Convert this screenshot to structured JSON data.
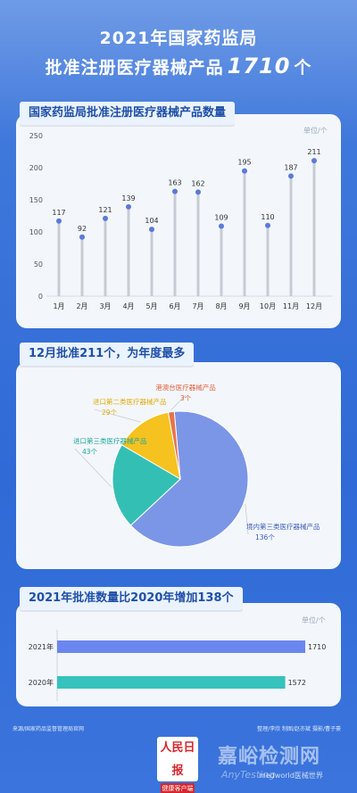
{
  "title": {
    "line1": "2021年国家药监局",
    "line2_prefix": "批准注册医疗器械产品",
    "line2_number": "1710",
    "line2_suffix": "个"
  },
  "section1_label": "国家药监局批准注册医疗器械产品数量",
  "section2_label": "12月批准211个，为年度最多",
  "section3_label": "2021年批准数量比2020年增加138个",
  "unit_label": "单位/个",
  "source": "来源/国家药品监督管理局官网",
  "credits": "整理/李欣  制图/赵亦斌  摄影/曹子豪",
  "logo": {
    "line1": "人民日报",
    "line2": "健康客户端"
  },
  "watermark": {
    "main": "嘉峪检测网",
    "sub": "AnyTesting",
    "account": "medworld医械世界"
  },
  "colors": {
    "accent_blue": "#5b79dc",
    "stem_gray": "#c7ccd4",
    "pie_domestic3": "#7b96e6",
    "pie_import3": "#34bfb5",
    "pie_import2": "#f5c21f",
    "pie_hkmt": "#e8734a",
    "bar_2021": "#6b86ef",
    "bar_2020": "#36c2bd"
  },
  "chart_data": [
    {
      "type": "bar",
      "subtype": "lollipop",
      "categories": [
        "1月",
        "2月",
        "3月",
        "4月",
        "5月",
        "6月",
        "7月",
        "8月",
        "9月",
        "10月",
        "11月",
        "12月"
      ],
      "values": [
        117,
        92,
        121,
        139,
        104,
        163,
        162,
        109,
        195,
        110,
        187,
        211
      ],
      "ylim": [
        0,
        250
      ],
      "yticks": [
        0,
        50,
        100,
        150,
        200,
        250
      ],
      "grid": false
    },
    {
      "type": "pie",
      "slices": [
        {
          "label": "境内第三类医疗器械产品",
          "value": 136,
          "value_label": "136个"
        },
        {
          "label": "进口第三类医疗器械产品",
          "value": 43,
          "value_label": "43个"
        },
        {
          "label": "进口第二类医疗器械产品",
          "value": 29,
          "value_label": "29个"
        },
        {
          "label": "港澳台医疗器械产品",
          "value": 3,
          "value_label": "3个"
        }
      ]
    },
    {
      "type": "bar",
      "orientation": "horizontal",
      "categories": [
        "2021年",
        "2020年"
      ],
      "values": [
        1710,
        1572
      ],
      "value_labels": [
        "1710",
        "1572"
      ]
    }
  ]
}
